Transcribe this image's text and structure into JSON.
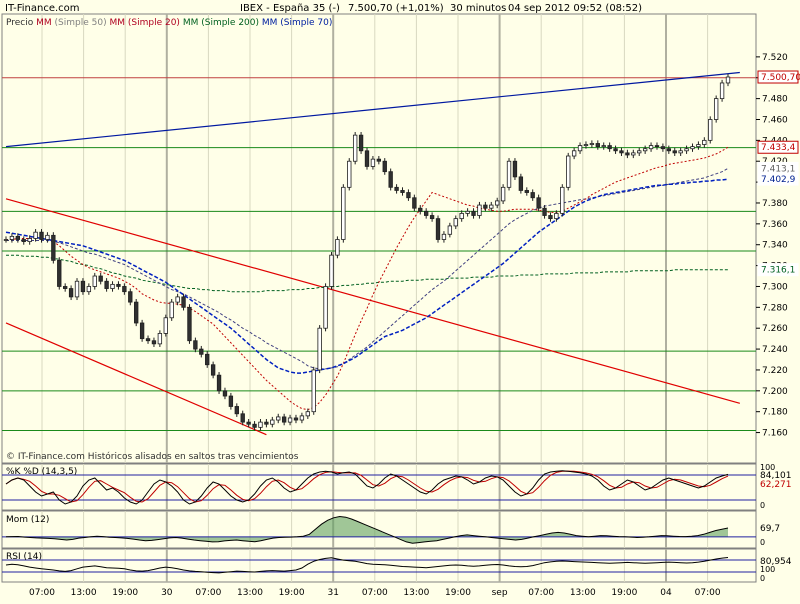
{
  "header": {
    "site": "IT-Finance.com",
    "instrument": "IBEX - España 35 (-)",
    "price_change": "7.500,70 (+1,01%)",
    "interval": "30 minutos",
    "datetime": "04 sep 2012 09:52 (08:52)"
  },
  "main": {
    "legend": [
      {
        "text": "Precio",
        "color": "#303030"
      },
      {
        "text": "MM",
        "color": "#b00020"
      },
      {
        "text": "(Simple 50)",
        "color": "#808080"
      },
      {
        "text": "MM",
        "color": "#b00020"
      },
      {
        "text": "(Simple 20)",
        "color": "#b00020"
      },
      {
        "text": "MM",
        "color": "#006020"
      },
      {
        "text": "(Simple 200)",
        "color": "#006020"
      },
      {
        "text": "MM",
        "color": "#0020a0"
      },
      {
        "text": "(Simple 70)",
        "color": "#0020a0"
      }
    ],
    "footer_note": "© IT-Finance.com  Históricos alisados en saltos tras vencimientos",
    "y_ticks": [
      "7.520",
      "7.500",
      "7.480",
      "7.460",
      "7.440",
      "7.420",
      "7.400",
      "7.380",
      "7.360",
      "7.340",
      "7.320",
      "7.300",
      "7.280",
      "7.260",
      "7.240",
      "7.220",
      "7.200",
      "7.180",
      "7.160"
    ],
    "badges": [
      {
        "label": "7.500,70",
        "value": 7500.7,
        "bg": "#ffffff",
        "fg": "#c00000",
        "border": "#c00000"
      },
      {
        "label": "7.433,4",
        "value": 7433.4,
        "bg": "#ffffff",
        "fg": "#c00000",
        "border": "#c00000"
      },
      {
        "label": "7.413,1",
        "value": 7413.1,
        "bg": "#ffffff",
        "fg": "#606060",
        "border": "#ffffff"
      },
      {
        "label": "7.402,9",
        "value": 7402.9,
        "bg": "#ffffff",
        "fg": "#002090",
        "border": "#ffffff"
      },
      {
        "label": "7.316,1",
        "value": 7316.1,
        "bg": "#ffffff",
        "fg": "#006020",
        "border": "#ffffff"
      }
    ]
  },
  "stoch": {
    "label": "%K %D (14,3,5)",
    "values": [
      "84,101",
      "62,271"
    ],
    "value_colors": [
      "#000000",
      "#c00000"
    ],
    "y_ticks": [
      "100",
      "0"
    ]
  },
  "mom": {
    "label": "Mom (12)",
    "value": "69,7",
    "y_ticks": [
      "0"
    ]
  },
  "rsi": {
    "label": "RSI (14)",
    "value": "80,954",
    "y_ticks": [
      "100",
      "0"
    ]
  },
  "x_axis": {
    "labels": [
      "07:00",
      "13:00",
      "19:00",
      "30",
      "07:00",
      "13:00",
      "19:00",
      "31",
      "07:00",
      "13:00",
      "19:00",
      "sep",
      "07:00",
      "13:00",
      "19:00",
      "04",
      "07:00"
    ],
    "day_separators": [
      3,
      7,
      11,
      15
    ]
  },
  "colors": {
    "background": "#ffffe8",
    "grid_green": "#1a8a1a",
    "channel_red": "#e00000",
    "trend_blue": "#0018a0",
    "candle_up": "#ffffff",
    "candle_down": "#303030"
  },
  "chart_data": {
    "type": "candlestick",
    "instrument": "IBEX - España 35",
    "interval": "30 minutos",
    "ylim": [
      7150,
      7540
    ],
    "horizontal_levels": [
      7500,
      7433,
      7372,
      7334,
      7238,
      7200,
      7162
    ],
    "resistance_line": [
      [
        0,
        7433
      ],
      [
        60,
        7433
      ]
    ],
    "upper_channel": [
      [
        0,
        7384
      ],
      [
        124,
        7188
      ]
    ],
    "lower_channel": [
      [
        0,
        7265
      ],
      [
        44,
        7158
      ]
    ],
    "trendline_blue": [
      [
        0,
        7434
      ],
      [
        124,
        7505
      ]
    ],
    "close": [
      7345,
      7348,
      7345,
      7343,
      7346,
      7352,
      7345,
      7349,
      7325,
      7300,
      7298,
      7290,
      7305,
      7295,
      7300,
      7310,
      7305,
      7298,
      7302,
      7300,
      7295,
      7285,
      7265,
      7250,
      7248,
      7245,
      7255,
      7270,
      7285,
      7290,
      7280,
      7248,
      7240,
      7235,
      7225,
      7215,
      7200,
      7195,
      7185,
      7178,
      7170,
      7168,
      7165,
      7170,
      7168,
      7172,
      7175,
      7170,
      7174,
      7172,
      7176,
      7180,
      7220,
      7260,
      7300,
      7330,
      7345,
      7395,
      7420,
      7445,
      7430,
      7415,
      7422,
      7420,
      7410,
      7395,
      7392,
      7390,
      7385,
      7375,
      7372,
      7368,
      7365,
      7345,
      7350,
      7358,
      7365,
      7370,
      7372,
      7368,
      7378,
      7375,
      7378,
      7382,
      7395,
      7420,
      7405,
      7392,
      7390,
      7385,
      7375,
      7368,
      7365,
      7370,
      7395,
      7425,
      7430,
      7435,
      7436,
      7437,
      7434,
      7435,
      7432,
      7430,
      7428,
      7426,
      7428,
      7430,
      7432,
      7435,
      7434,
      7432,
      7430,
      7428,
      7430,
      7432,
      7434,
      7436,
      7440,
      7460,
      7480,
      7495,
      7500.7
    ],
    "sma20": [
      7345,
      7345,
      7346,
      7346,
      7346,
      7347,
      7346,
      7346,
      7343,
      7339,
      7334,
      7329,
      7325,
      7321,
      7318,
      7316,
      7314,
      7312,
      7310,
      7308,
      7305,
      7302,
      7298,
      7293,
      7290,
      7287,
      7285,
      7284,
      7284,
      7283,
      7282,
      7279,
      7276,
      7272,
      7268,
      7264,
      7258,
      7252,
      7246,
      7240,
      7234,
      7228,
      7222,
      7216,
      7210,
      7205,
      7200,
      7195,
      7190,
      7186,
      7183,
      7182,
      7184,
      7189,
      7196,
      7205,
      7214,
      7226,
      7240,
      7254,
      7267,
      7279,
      7292,
      7304,
      7315,
      7326,
      7337,
      7347,
      7357,
      7366,
      7374,
      7382,
      7390,
      7388,
      7386,
      7384,
      7382,
      7380,
      7378,
      7377,
      7375,
      7374,
      7373,
      7372,
      7372,
      7373,
      7374,
      7374,
      7374,
      7374,
      7373,
      7372,
      7371,
      7371,
      7372,
      7375,
      7378,
      7381,
      7384,
      7388,
      7391,
      7394,
      7397,
      7400,
      7402,
      7404,
      7406,
      7408,
      7410,
      7412,
      7414,
      7415,
      7417,
      7418,
      7419,
      7420,
      7421,
      7422,
      7423,
      7425,
      7427,
      7430,
      7433.4
    ],
    "sma50": [
      7344,
      7344,
      7344,
      7344,
      7344,
      7344,
      7344,
      7344,
      7343,
      7342,
      7340,
      7338,
      7336,
      7334,
      7332,
      7331,
      7329,
      7327,
      7325,
      7323,
      7321,
      7318,
      7315,
      7312,
      7309,
      7306,
      7303,
      7300,
      7297,
      7295,
      7293,
      7290,
      7287,
      7284,
      7281,
      7278,
      7275,
      7271,
      7268,
      7264,
      7260,
      7257,
      7253,
      7250,
      7246,
      7243,
      7240,
      7237,
      7234,
      7231,
      7228,
      7224,
      7222,
      7221,
      7221,
      7222,
      7223,
      7226,
      7230,
      7234,
      7238,
      7242,
      7247,
      7252,
      7257,
      7262,
      7267,
      7272,
      7277,
      7282,
      7287,
      7292,
      7297,
      7301,
      7305,
      7310,
      7315,
      7320,
      7325,
      7330,
      7335,
      7340,
      7345,
      7350,
      7355,
      7360,
      7364,
      7367,
      7370,
      7373,
      7375,
      7377,
      7378,
      7379,
      7380,
      7381,
      7382,
      7383,
      7384,
      7385,
      7386,
      7387,
      7388,
      7389,
      7390,
      7391,
      7392,
      7393,
      7394,
      7395,
      7396,
      7397,
      7398,
      7399,
      7400,
      7401,
      7402,
      7403,
      7404,
      7406,
      7408,
      7410,
      7413.1
    ],
    "sma70": [
      7352,
      7351,
      7350,
      7349,
      7348,
      7347,
      7346,
      7345,
      7344,
      7343,
      7342,
      7341,
      7340,
      7339,
      7337,
      7335,
      7333,
      7331,
      7329,
      7327,
      7325,
      7322,
      7319,
      7316,
      7313,
      7310,
      7307,
      7304,
      7300,
      7296,
      7292,
      7288,
      7284,
      7280,
      7276,
      7272,
      7268,
      7264,
      7260,
      7255,
      7250,
      7245,
      7240,
      7235,
      7230,
      7226,
      7222,
      7220,
      7218,
      7217,
      7217,
      7218,
      7219,
      7220,
      7221,
      7222,
      7224,
      7226,
      7229,
      7232,
      7236,
      7240,
      7244,
      7248,
      7252,
      7254,
      7256,
      7258,
      7261,
      7264,
      7267,
      7270,
      7274,
      7278,
      7282,
      7286,
      7290,
      7294,
      7298,
      7302,
      7306,
      7310,
      7314,
      7318,
      7322,
      7327,
      7332,
      7337,
      7342,
      7347,
      7352,
      7356,
      7360,
      7364,
      7368,
      7372,
      7376,
      7379,
      7382,
      7384,
      7386,
      7388,
      7389,
      7390,
      7391,
      7392,
      7393,
      7394,
      7395,
      7396,
      7397,
      7397,
      7398,
      7398,
      7399,
      7399,
      7400,
      7400,
      7401,
      7401,
      7402,
      7402,
      7402.9
    ],
    "sma200": [
      7330,
      7330,
      7330,
      7329,
      7329,
      7329,
      7328,
      7328,
      7327,
      7326,
      7325,
      7324,
      7322,
      7321,
      7320,
      7318,
      7317,
      7315,
      7313,
      7312,
      7310,
      7309,
      7308,
      7306,
      7305,
      7304,
      7303,
      7302,
      7301,
      7300,
      7299,
      7298,
      7298,
      7297,
      7297,
      7296,
      7296,
      7296,
      7295,
      7295,
      7295,
      7295,
      7295,
      7295,
      7296,
      7296,
      7296,
      7296,
      7297,
      7297,
      7297,
      7298,
      7298,
      7299,
      7299,
      7300,
      7300,
      7301,
      7301,
      7302,
      7302,
      7303,
      7303,
      7304,
      7304,
      7305,
      7305,
      7305,
      7306,
      7306,
      7306,
      7307,
      7307,
      7307,
      7307,
      7308,
      7308,
      7308,
      7308,
      7309,
      7309,
      7309,
      7309,
      7310,
      7310,
      7310,
      7310,
      7311,
      7311,
      7311,
      7311,
      7312,
      7312,
      7312,
      7312,
      7312,
      7313,
      7313,
      7313,
      7313,
      7313,
      7314,
      7314,
      7314,
      7314,
      7314,
      7315,
      7315,
      7315,
      7315,
      7315,
      7315,
      7315,
      7316,
      7316,
      7316,
      7316,
      7316,
      7316,
      7316,
      7316.1,
      7316.1,
      7316.1
    ],
    "stoch_k": [
      60,
      70,
      75,
      70,
      55,
      40,
      30,
      35,
      40,
      20,
      10,
      15,
      30,
      55,
      70,
      75,
      60,
      45,
      50,
      40,
      25,
      15,
      10,
      20,
      40,
      60,
      70,
      65,
      55,
      40,
      20,
      10,
      15,
      30,
      50,
      65,
      60,
      45,
      30,
      20,
      15,
      20,
      35,
      55,
      70,
      75,
      65,
      50,
      40,
      45,
      60,
      75,
      85,
      90,
      92,
      90,
      85,
      88,
      90,
      85,
      70,
      55,
      50,
      60,
      75,
      85,
      80,
      70,
      60,
      50,
      40,
      35,
      45,
      60,
      70,
      75,
      80,
      78,
      70,
      60,
      65,
      75,
      80,
      78,
      70,
      55,
      40,
      30,
      35,
      50,
      70,
      85,
      90,
      92,
      93,
      92,
      90,
      88,
      85,
      80,
      70,
      55,
      45,
      50,
      60,
      70,
      65,
      55,
      45,
      50,
      60,
      70,
      75,
      70,
      65,
      60,
      55,
      50,
      55,
      65,
      75,
      80,
      84.1
    ],
    "momentum": [
      0,
      2,
      3,
      -2,
      -5,
      -8,
      -10,
      -12,
      -15,
      -20,
      -25,
      -20,
      -10,
      -5,
      0,
      5,
      2,
      -3,
      -5,
      -8,
      -12,
      -18,
      -25,
      -30,
      -28,
      -22,
      -15,
      -8,
      -5,
      -10,
      -18,
      -25,
      -30,
      -35,
      -40,
      -38,
      -32,
      -28,
      -25,
      -30,
      -35,
      -38,
      -30,
      -20,
      -10,
      -5,
      -3,
      -2,
      0,
      5,
      20,
      60,
      100,
      130,
      150,
      160,
      155,
      140,
      120,
      100,
      80,
      60,
      40,
      20,
      0,
      -20,
      -40,
      -50,
      -45,
      -40,
      -35,
      -30,
      -20,
      -10,
      0,
      10,
      15,
      10,
      5,
      0,
      -5,
      -10,
      -15,
      -20,
      -25,
      -20,
      -10,
      0,
      10,
      20,
      30,
      35,
      30,
      20,
      10,
      5,
      0,
      5,
      10,
      8,
      5,
      2,
      0,
      -2,
      -5,
      -3,
      0,
      5,
      10,
      8,
      5,
      3,
      2,
      5,
      10,
      20,
      35,
      50,
      60,
      69.7
    ],
    "rsi": [
      55,
      58,
      56,
      52,
      48,
      45,
      42,
      40,
      38,
      35,
      33,
      36,
      42,
      48,
      50,
      52,
      49,
      46,
      45,
      44,
      42,
      38,
      35,
      34,
      36,
      40,
      45,
      48,
      46,
      42,
      38,
      35,
      33,
      32,
      30,
      29,
      28,
      30,
      32,
      34,
      33,
      32,
      31,
      33,
      35,
      36,
      35,
      34,
      36,
      38,
      45,
      58,
      68,
      74,
      78,
      80,
      76,
      72,
      70,
      68,
      64,
      60,
      58,
      57,
      56,
      54,
      52,
      50,
      49,
      48,
      47,
      46,
      48,
      50,
      52,
      54,
      55,
      54,
      52,
      51,
      52,
      54,
      56,
      57,
      55,
      52,
      50,
      49,
      50,
      53,
      58,
      63,
      66,
      68,
      69,
      68,
      67,
      66,
      65,
      64,
      63,
      62,
      61,
      62,
      63,
      64,
      63,
      62,
      61,
      62,
      63,
      64,
      65,
      64,
      63,
      62,
      63,
      65,
      68,
      72,
      76,
      79,
      80.954
    ]
  }
}
